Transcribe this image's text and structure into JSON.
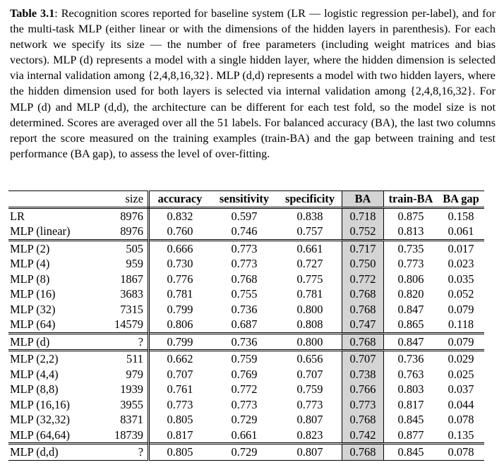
{
  "caption": {
    "label": "Table 3.1",
    "text": ": Recognition scores reported for baseline system (LR — logistic regression per-label), and for the multi-task MLP (either linear or with the dimensions of the hidden layers in parenthesis). For each network we specify its size — the number of free parameters (including weight matrices and bias vectors). MLP (d) represents a model with a single hidden layer, where the hidden dimension is selected via internal validation among {2,4,8,16,32}. MLP (d,d) represents a model with two hidden layers, where the hidden dimension used for both layers is selected via internal validation among {2,4,8,16,32}. For MLP (d) and MLP (d,d), the architecture can be different for each test fold, so the model size is not determined. Scores are averaged over all the 51 labels. For balanced accuracy (BA), the last two columns report the score measured on the training examples (train-BA) and the gap between training and test performance (BA gap), to assess the level of over-fitting."
  },
  "table": {
    "headers": [
      "",
      "size",
      "accuracy",
      "sensitivity",
      "specificity",
      "BA",
      "train-BA",
      "BA gap"
    ],
    "groups": [
      [
        [
          "LR",
          "8976",
          "0.832",
          "0.597",
          "0.838",
          "0.718",
          "0.875",
          "0.158"
        ],
        [
          "MLP (linear)",
          "8976",
          "0.760",
          "0.746",
          "0.757",
          "0.752",
          "0.813",
          "0.061"
        ]
      ],
      [
        [
          "MLP (2)",
          "505",
          "0.666",
          "0.773",
          "0.661",
          "0.717",
          "0.735",
          "0.017"
        ],
        [
          "MLP (4)",
          "959",
          "0.730",
          "0.773",
          "0.727",
          "0.750",
          "0.773",
          "0.023"
        ],
        [
          "MLP (8)",
          "1867",
          "0.776",
          "0.768",
          "0.775",
          "0.772",
          "0.806",
          "0.035"
        ],
        [
          "MLP (16)",
          "3683",
          "0.781",
          "0.755",
          "0.781",
          "0.768",
          "0.820",
          "0.052"
        ],
        [
          "MLP (32)",
          "7315",
          "0.799",
          "0.736",
          "0.800",
          "0.768",
          "0.847",
          "0.079"
        ],
        [
          "MLP (64)",
          "14579",
          "0.806",
          "0.687",
          "0.808",
          "0.747",
          "0.865",
          "0.118"
        ]
      ],
      [
        [
          "MLP (d)",
          "?",
          "0.799",
          "0.736",
          "0.800",
          "0.768",
          "0.847",
          "0.079"
        ]
      ],
      [
        [
          "MLP (2,2)",
          "511",
          "0.662",
          "0.759",
          "0.656",
          "0.707",
          "0.736",
          "0.029"
        ],
        [
          "MLP (4,4)",
          "979",
          "0.707",
          "0.769",
          "0.707",
          "0.738",
          "0.763",
          "0.025"
        ],
        [
          "MLP (8,8)",
          "1939",
          "0.761",
          "0.772",
          "0.759",
          "0.766",
          "0.803",
          "0.037"
        ],
        [
          "MLP (16,16)",
          "3955",
          "0.773",
          "0.773",
          "0.773",
          "0.773",
          "0.817",
          "0.044"
        ],
        [
          "MLP (32,32)",
          "8371",
          "0.805",
          "0.729",
          "0.807",
          "0.768",
          "0.845",
          "0.078"
        ],
        [
          "MLP (64,64)",
          "18739",
          "0.817",
          "0.661",
          "0.823",
          "0.742",
          "0.877",
          "0.135"
        ]
      ],
      [
        [
          "MLP (d,d)",
          "?",
          "0.805",
          "0.729",
          "0.807",
          "0.768",
          "0.845",
          "0.078"
        ]
      ]
    ]
  }
}
